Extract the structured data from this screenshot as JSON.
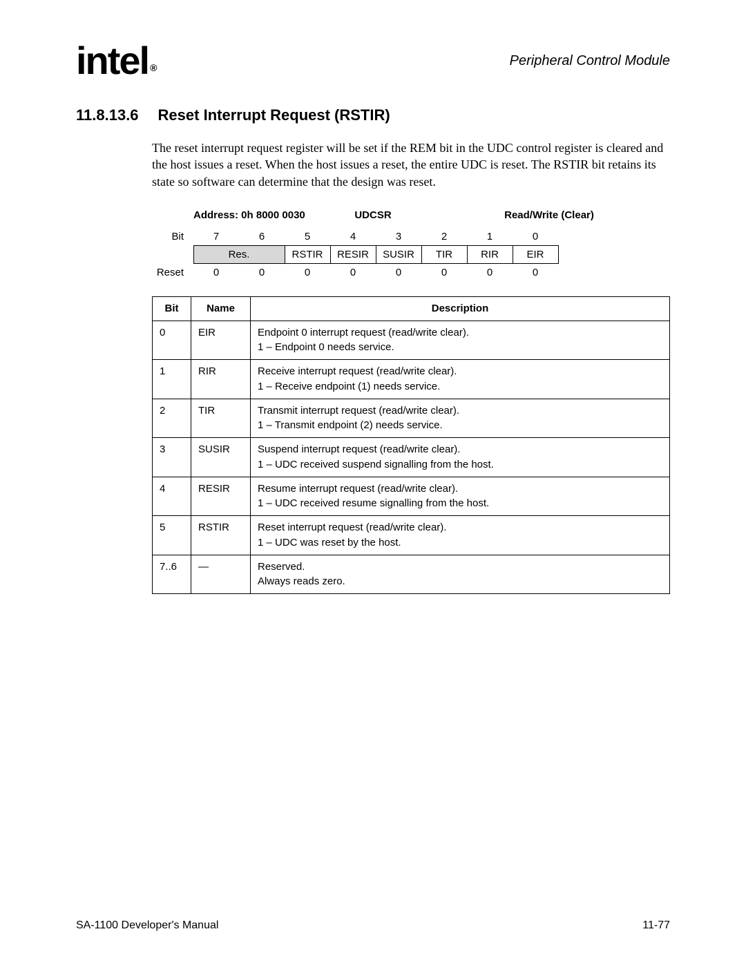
{
  "header": {
    "logo_text": "intel",
    "module_title": "Peripheral Control Module"
  },
  "section": {
    "number": "11.8.13.6",
    "title": "Reset Interrupt Request (RSTIR)"
  },
  "body_paragraph": "The reset interrupt request register will be set if the REM bit in the UDC control register is cleared and the host issues a reset. When the host issues a reset, the entire UDC is reset. The RSTIR bit retains its state so software can determine that the design was reset.",
  "register": {
    "address_label": "Address: 0h 8000 0030",
    "name": "UDCSR",
    "access": "Read/Write (Clear)",
    "bit_row_label": "Bit",
    "reset_row_label": "Reset",
    "bit_numbers": [
      "7",
      "6",
      "5",
      "4",
      "3",
      "2",
      "1",
      "0"
    ],
    "field_cells": [
      {
        "label": "Res.",
        "span": 2,
        "shaded": true
      },
      {
        "label": "RSTIR",
        "span": 1,
        "shaded": false
      },
      {
        "label": "RESIR",
        "span": 1,
        "shaded": false
      },
      {
        "label": "SUSIR",
        "span": 1,
        "shaded": false
      },
      {
        "label": "TIR",
        "span": 1,
        "shaded": false
      },
      {
        "label": "RIR",
        "span": 1,
        "shaded": false
      },
      {
        "label": "EIR",
        "span": 1,
        "shaded": false
      }
    ],
    "reset_values": [
      "0",
      "0",
      "0",
      "0",
      "0",
      "0",
      "0",
      "0"
    ]
  },
  "desc_table": {
    "headers": {
      "bit": "Bit",
      "name": "Name",
      "desc": "Description"
    },
    "rows": [
      {
        "bit": "0",
        "name": "EIR",
        "desc": "Endpoint 0 interrupt request (read/write clear).\n1 – Endpoint 0 needs service."
      },
      {
        "bit": "1",
        "name": "RIR",
        "desc": "Receive interrupt request (read/write clear).\n1 – Receive endpoint (1) needs service."
      },
      {
        "bit": "2",
        "name": "TIR",
        "desc": "Transmit interrupt request (read/write clear).\n1 – Transmit endpoint (2) needs service."
      },
      {
        "bit": "3",
        "name": "SUSIR",
        "desc": "Suspend interrupt request (read/write clear).\n1 – UDC received suspend signalling from the host."
      },
      {
        "bit": "4",
        "name": "RESIR",
        "desc": "Resume interrupt request (read/write clear).\n1 – UDC received resume signalling from the host."
      },
      {
        "bit": "5",
        "name": "RSTIR",
        "desc": "Reset interrupt request (read/write clear).\n1 – UDC was reset by the host."
      },
      {
        "bit": "7..6",
        "name": "—",
        "desc": "Reserved.\nAlways reads zero."
      }
    ]
  },
  "footer": {
    "left": "SA-1100 Developer's Manual",
    "right": "11-77"
  },
  "colors": {
    "page_bg": "#ffffff",
    "text": "#000000",
    "shaded_cell": "#d8d8d8",
    "border": "#000000"
  }
}
